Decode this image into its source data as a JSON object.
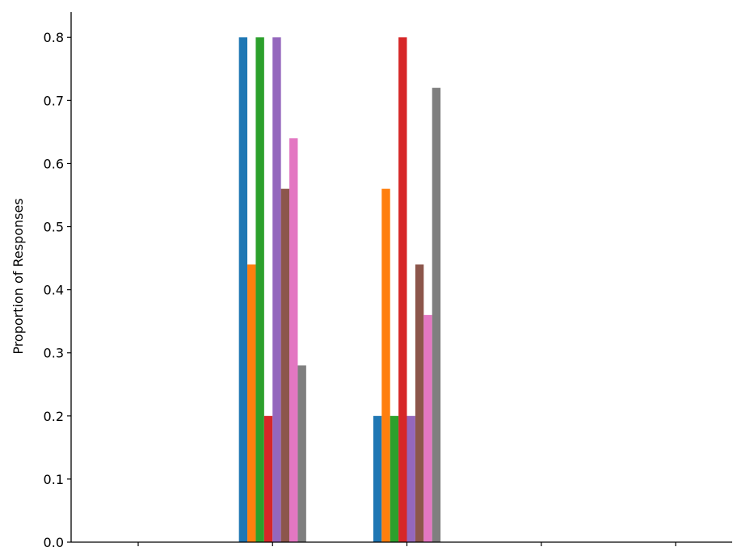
{
  "chart_data": {
    "type": "bar",
    "ylabel": "Proportion of Responses",
    "xlabel": "",
    "ylim": [
      0,
      0.84
    ],
    "y_ticks": [
      "0.0",
      "0.1",
      "0.2",
      "0.3",
      "0.4",
      "0.5",
      "0.6",
      "0.7",
      "0.8"
    ],
    "category_count": 5,
    "grid": false,
    "legend": "none",
    "series": [
      {
        "color": "#1f77b4",
        "values": [
          0,
          0.8,
          0.2,
          0,
          0
        ]
      },
      {
        "color": "#ff7f0e",
        "values": [
          0,
          0.44,
          0.56,
          0,
          0
        ]
      },
      {
        "color": "#2ca02c",
        "values": [
          0,
          0.8,
          0.2,
          0,
          0
        ]
      },
      {
        "color": "#d62728",
        "values": [
          0,
          0.2,
          0.8,
          0,
          0
        ]
      },
      {
        "color": "#9467bd",
        "values": [
          0,
          0.8,
          0.2,
          0,
          0
        ]
      },
      {
        "color": "#8c564b",
        "values": [
          0,
          0.56,
          0.44,
          0,
          0
        ]
      },
      {
        "color": "#e377c2",
        "values": [
          0,
          0.64,
          0.36,
          0,
          0
        ]
      },
      {
        "color": "#7f7f7f",
        "values": [
          0,
          0.28,
          0.72,
          0,
          0
        ]
      }
    ]
  }
}
